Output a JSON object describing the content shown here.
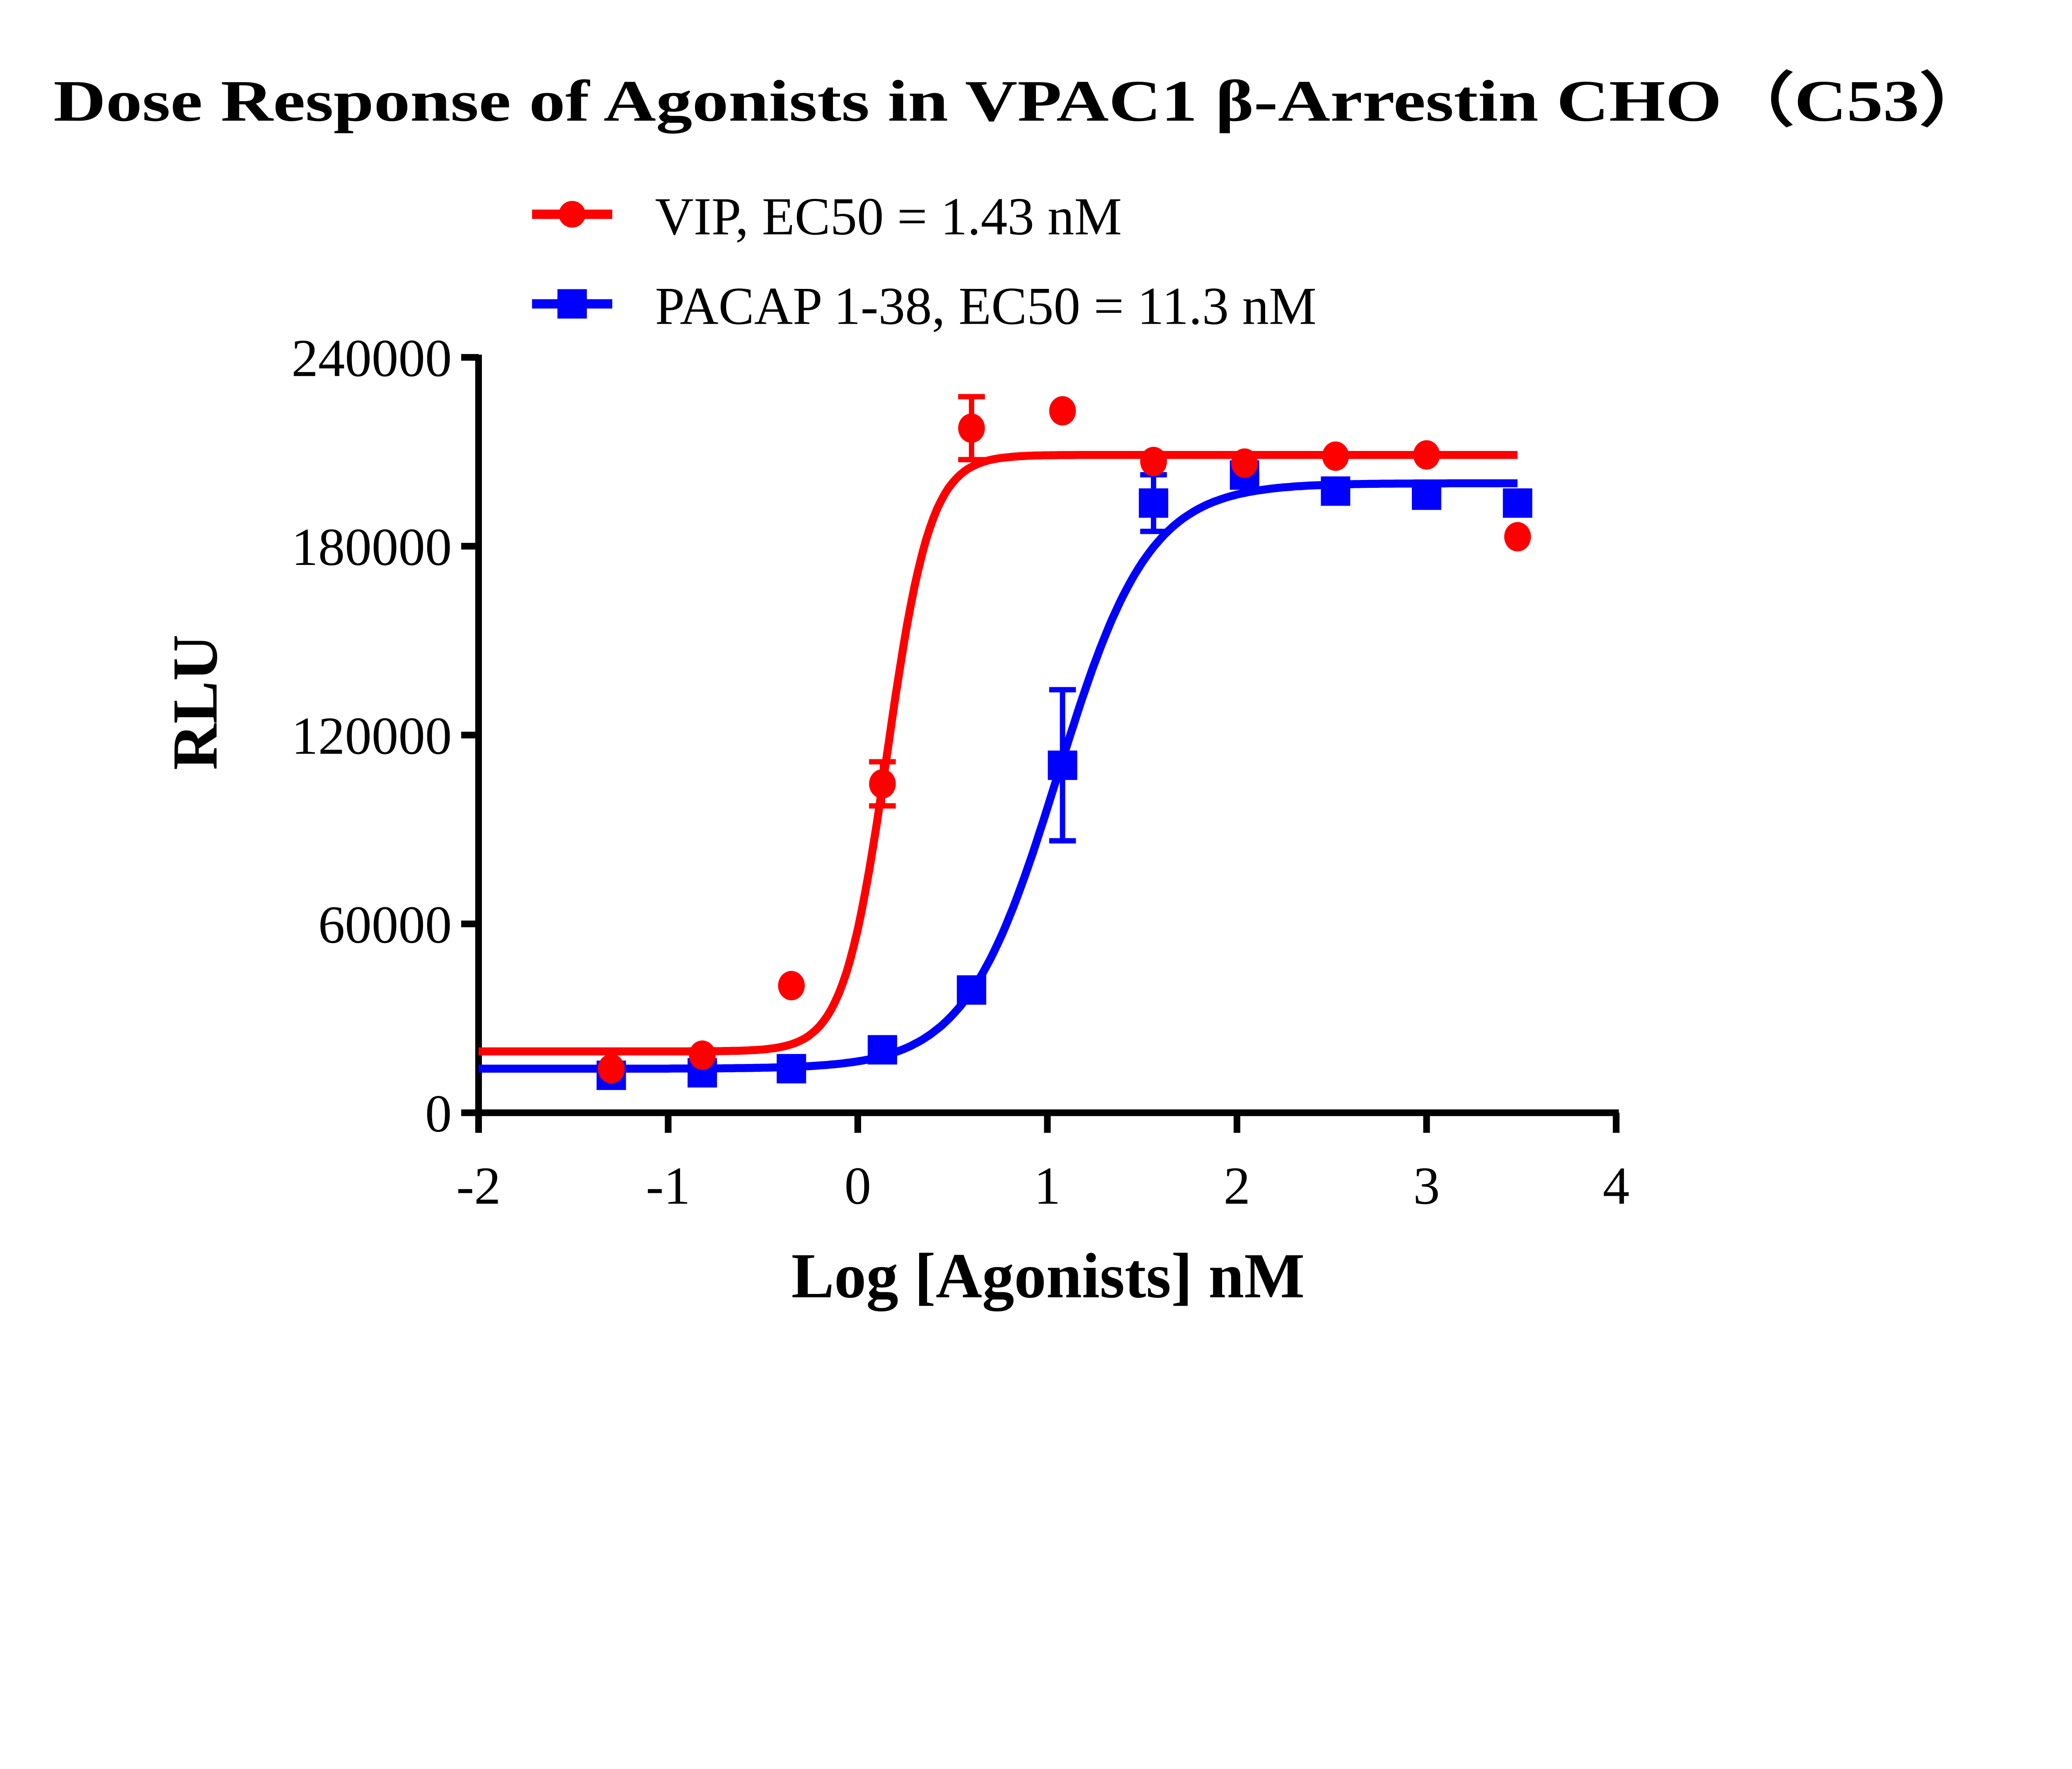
{
  "chart_data": {
    "type": "scatter",
    "title": "Dose Response of Agonists in VPAC1 β-Arrestin CHO（C53）",
    "xlabel": "Log [Agonists] nM",
    "ylabel": "RLU",
    "xlim": [
      -2,
      4
    ],
    "ylim": [
      0,
      240000
    ],
    "xticks": [
      "-2",
      "-1",
      "0",
      "1",
      "2",
      "3",
      "4"
    ],
    "yticks": [
      "0",
      "60000",
      "120000",
      "180000",
      "240000"
    ],
    "grid": false,
    "legend_position": "top",
    "series": [
      {
        "name": "VIP, EC50 = 1.43 nM",
        "color": "#ff0000",
        "marker": "circle",
        "x": [
          -1.3,
          -0.82,
          -0.35,
          0.13,
          0.6,
          1.08,
          1.56,
          2.04,
          2.52,
          3.0,
          3.48
        ],
        "y": [
          14000,
          18300,
          40400,
          104500,
          217500,
          223000,
          206900,
          206400,
          208600,
          209000,
          183000
        ],
        "error": [
          0,
          0,
          0,
          7000,
          10000,
          0,
          0,
          0,
          0,
          0,
          0
        ],
        "fit": {
          "bottom": 19500,
          "top": 209000,
          "logEC50": 0.155,
          "hill": 3.8
        }
      },
      {
        "name": "PACAP 1-38, EC50 = 11.3 nM",
        "color": "#0000ff",
        "marker": "square",
        "x": [
          -1.3,
          -0.82,
          -0.35,
          0.13,
          0.6,
          1.08,
          1.56,
          2.04,
          2.52,
          3.0,
          3.48
        ],
        "y": [
          11900,
          12700,
          14000,
          20000,
          39000,
          110400,
          193700,
          202600,
          197500,
          196200,
          193700
        ],
        "error": [
          0,
          0,
          0,
          0,
          0,
          24000,
          9000,
          0,
          0,
          0,
          0
        ],
        "fit": {
          "bottom": 14000,
          "top": 200000,
          "logEC50": 1.053,
          "hill": 1.8
        }
      }
    ]
  }
}
